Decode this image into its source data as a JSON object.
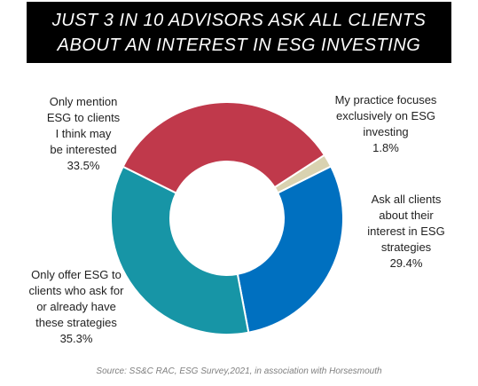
{
  "title": {
    "line1": "JUST 3 IN 10 ADVISORS ASK ALL CLIENTS",
    "line2": "ABOUT AN INTEREST IN ESG INVESTING"
  },
  "chart_data": {
    "type": "pie",
    "donut": true,
    "slices": [
      {
        "label_lines": [
          "My practice focuses",
          "exclusively on ESG",
          "investing"
        ],
        "value": 1.8,
        "value_label": "1.8%",
        "color": "#d9d2b0"
      },
      {
        "label_lines": [
          "Ask all clients",
          "about their",
          "interest in ESG",
          "strategies"
        ],
        "value": 29.4,
        "value_label": "29.4%",
        "color": "#0070c0"
      },
      {
        "label_lines": [
          "Only offer ESG to",
          "clients who ask for",
          "or already have",
          "these strategies"
        ],
        "value": 35.3,
        "value_label": "35.3%",
        "color": "#1795a6"
      },
      {
        "label_lines": [
          "Only mention",
          "ESG to clients",
          "I think may",
          "be  interested"
        ],
        "value": 33.5,
        "value_label": "33.5%",
        "color": "#c0394b"
      }
    ]
  },
  "source": "Source: SS&C RAC, ESG Survey,2021, in association with Horsesmouth"
}
